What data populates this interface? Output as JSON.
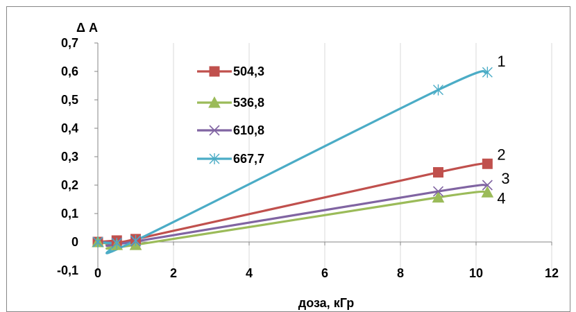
{
  "chart_data": {
    "type": "line",
    "title": "",
    "xlabel": "доза, кГр",
    "ylabel": "Δ A",
    "xlim": [
      0,
      12
    ],
    "ylim": [
      -0.1,
      0.7
    ],
    "x_ticks": [
      "0",
      "2",
      "4",
      "6",
      "8",
      "10",
      "12"
    ],
    "y_ticks": [
      "-0,1",
      "0",
      "0,1",
      "0,2",
      "0,3",
      "0,4",
      "0,5",
      "0,6",
      "0,7"
    ],
    "grid": "vertical",
    "legend_position": "top-left",
    "series": [
      {
        "name": "504,3",
        "color": "#c0504d",
        "marker": "square",
        "points": [
          [
            0,
            0
          ],
          [
            0.5,
            0.005
          ],
          [
            1,
            0.01
          ],
          [
            9,
            0.245
          ],
          [
            10.3,
            0.275
          ]
        ],
        "curve_label": "2"
      },
      {
        "name": "536,8",
        "color": "#9bbb59",
        "marker": "triangle",
        "points": [
          [
            0,
            0
          ],
          [
            0.5,
            -0.01
          ],
          [
            1,
            -0.01
          ],
          [
            9,
            0.157
          ],
          [
            10.3,
            0.175
          ]
        ],
        "curve_label": "4"
      },
      {
        "name": "610,8",
        "color": "#8064a2",
        "marker": "x",
        "points": [
          [
            0,
            0
          ],
          [
            0.5,
            -0.003
          ],
          [
            1,
            0.002
          ],
          [
            9,
            0.178
          ],
          [
            10.3,
            0.2
          ]
        ],
        "curve_label": "3"
      },
      {
        "name": "667,7",
        "color": "#4bacc6",
        "marker": "star",
        "points": [
          [
            0,
            0
          ],
          [
            0.5,
            -0.005
          ],
          [
            1,
            0.005
          ],
          [
            9,
            0.535
          ],
          [
            10.3,
            0.597
          ]
        ],
        "curve_label": "1"
      }
    ]
  }
}
